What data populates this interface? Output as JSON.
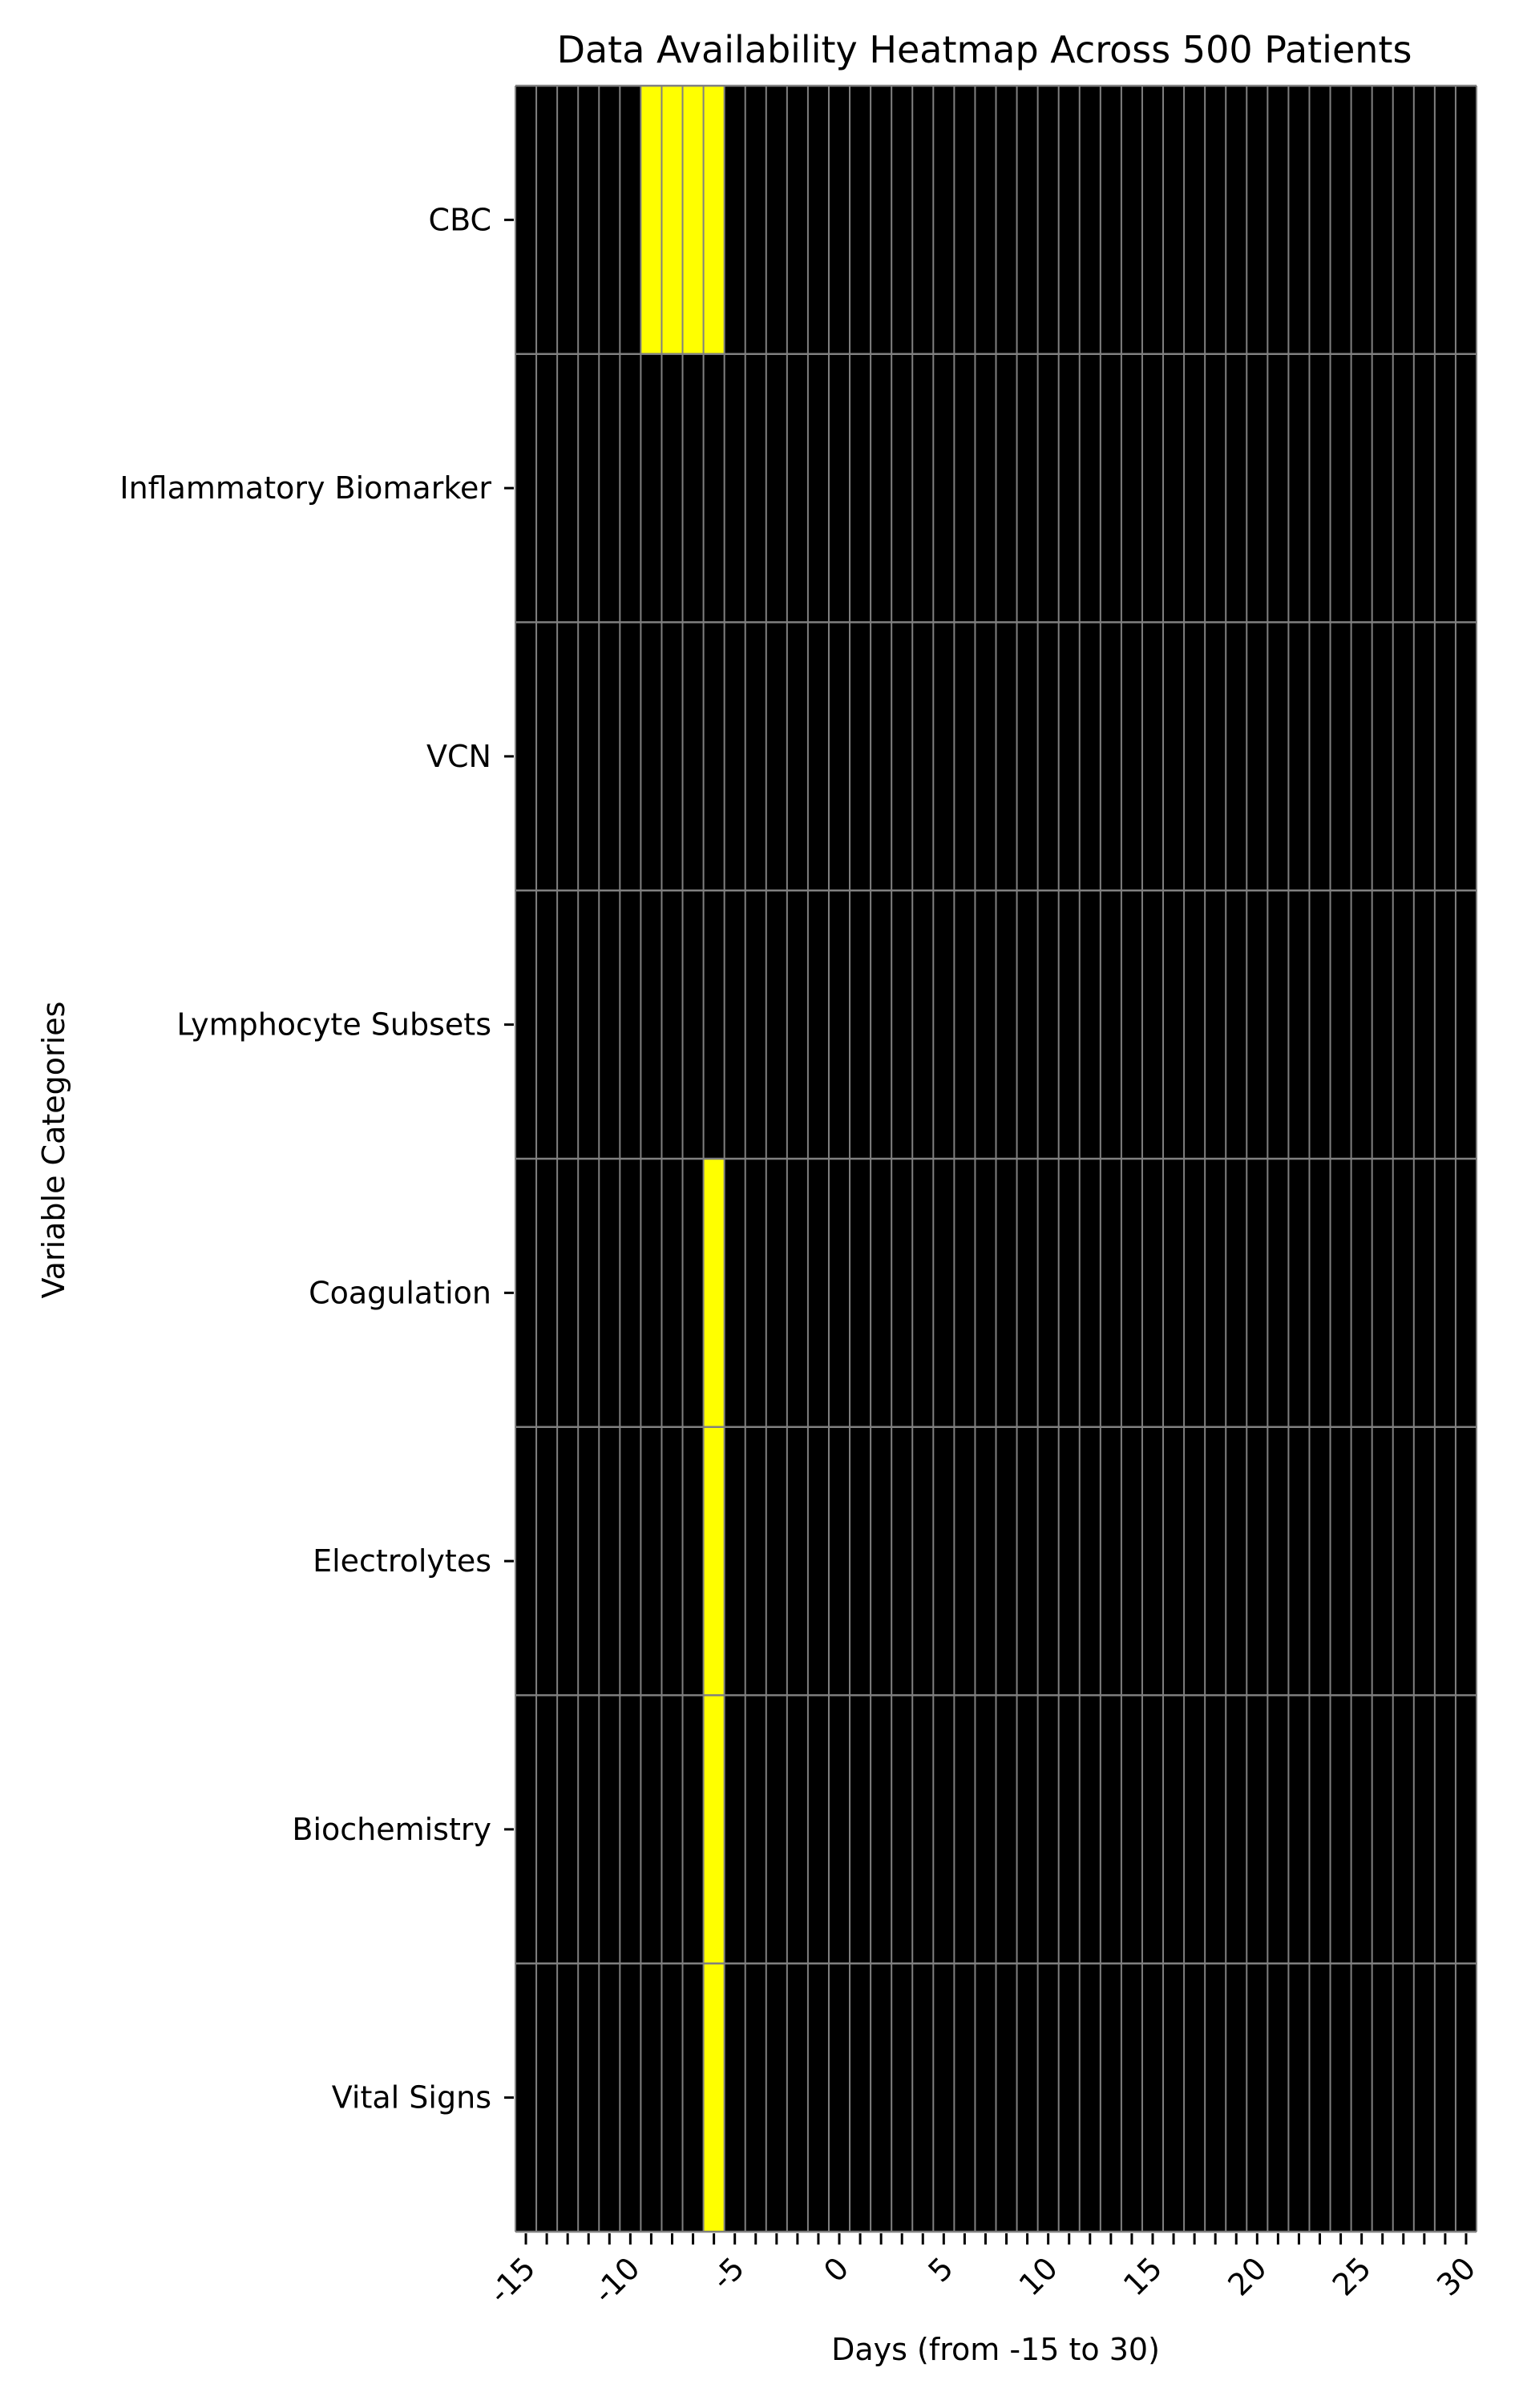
{
  "chart_data": {
    "type": "heatmap",
    "title": "Data Availability Heatmap Across 500 Patients",
    "xlabel": "Days (from -15 to 30)",
    "ylabel": "Variable Categories",
    "categories": [
      "CBC",
      "Inflammatory Biomarker",
      "VCN",
      "Lymphocyte Subsets",
      "Coagulation",
      "Electrolytes",
      "Biochemistry",
      "Vital Signs"
    ],
    "x": [
      -15,
      -14,
      -13,
      -12,
      -11,
      -10,
      -9,
      -8,
      -7,
      -6,
      -5,
      -4,
      -3,
      -2,
      -1,
      0,
      1,
      2,
      3,
      4,
      5,
      6,
      7,
      8,
      9,
      10,
      11,
      12,
      13,
      14,
      15,
      16,
      17,
      18,
      19,
      20,
      21,
      22,
      23,
      24,
      25,
      26,
      27,
      28,
      29,
      30
    ],
    "x_tick_labels": [
      "-15",
      "-10",
      "-5",
      "0",
      "5",
      "10",
      "15",
      "20",
      "25",
      "30"
    ],
    "x_tick_values": [
      -15,
      -10,
      -5,
      0,
      5,
      10,
      15,
      20,
      25,
      30
    ],
    "available": [
      [
        -9,
        -8,
        -7,
        -6
      ],
      [],
      [],
      [],
      [
        -6
      ],
      [
        -6
      ],
      [
        -6
      ],
      [
        -6
      ]
    ],
    "colors": {
      "available": "#ffff00",
      "missing": "#000000",
      "gridline": "#808080"
    },
    "grid": true,
    "legend": "none"
  }
}
